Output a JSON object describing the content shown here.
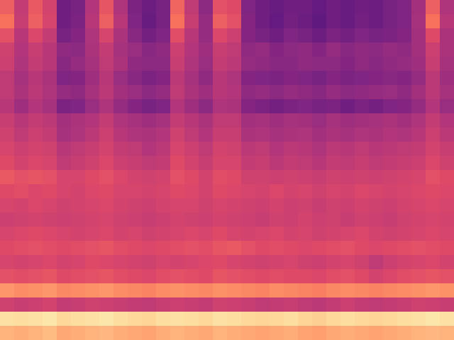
{
  "chart_data": {
    "type": "heatmap",
    "color": "magma",
    "tick_labels": false,
    "zlim": [
      0,
      100
    ],
    "cells": [
      [
        66,
        53,
        64,
        57,
        33,
        35,
        49,
        63,
        48,
        36,
        32,
        35,
        67,
        52,
        40,
        62,
        60,
        37,
        33,
        31,
        33,
        33,
        30,
        33,
        31,
        33,
        32,
        35,
        37,
        45,
        66,
        48
      ],
      [
        70,
        54,
        66,
        58,
        33,
        36,
        50,
        66,
        50,
        37,
        31,
        35,
        70,
        54,
        42,
        66,
        62,
        38,
        33,
        30,
        34,
        32,
        29,
        33,
        31,
        34,
        32,
        35,
        37,
        46,
        70,
        50
      ],
      [
        62,
        50,
        59,
        53,
        35,
        38,
        48,
        58,
        47,
        39,
        34,
        37,
        61,
        50,
        42,
        59,
        55,
        38,
        35,
        33,
        37,
        35,
        32,
        36,
        34,
        37,
        35,
        36,
        38,
        45,
        60,
        47
      ],
      [
        56,
        49,
        54,
        50,
        41,
        40,
        47,
        53,
        46,
        43,
        39,
        41,
        55,
        49,
        44,
        54,
        52,
        41,
        42,
        38,
        40,
        41,
        38,
        42,
        39,
        41,
        40,
        42,
        41,
        45,
        55,
        47
      ],
      [
        55,
        48,
        53,
        50,
        39,
        42,
        46,
        52,
        47,
        41,
        40,
        40,
        54,
        48,
        43,
        53,
        51,
        42,
        41,
        39,
        39,
        41,
        40,
        40,
        38,
        41,
        39,
        41,
        42,
        44,
        54,
        46
      ],
      [
        52,
        46,
        50,
        47,
        37,
        38,
        44,
        50,
        43,
        39,
        36,
        38,
        51,
        46,
        41,
        50,
        48,
        38,
        37,
        36,
        38,
        37,
        35,
        38,
        36,
        37,
        38,
        39,
        38,
        42,
        51,
        44
      ],
      [
        52,
        47,
        51,
        48,
        42,
        41,
        46,
        51,
        45,
        43,
        40,
        42,
        52,
        47,
        44,
        50,
        49,
        41,
        42,
        40,
        42,
        41,
        39,
        42,
        40,
        41,
        42,
        43,
        41,
        45,
        51,
        46
      ],
      [
        50,
        44,
        49,
        46,
        36,
        37,
        43,
        48,
        42,
        38,
        35,
        37,
        49,
        44,
        40,
        48,
        47,
        38,
        36,
        34,
        36,
        37,
        35,
        36,
        33,
        36,
        34,
        37,
        38,
        42,
        49,
        43
      ],
      [
        54,
        50,
        53,
        51,
        45,
        47,
        49,
        53,
        48,
        46,
        44,
        46,
        53,
        50,
        47,
        52,
        52,
        45,
        46,
        44,
        46,
        45,
        43,
        46,
        44,
        45,
        46,
        47,
        45,
        48,
        53,
        49
      ],
      [
        56,
        52,
        55,
        53,
        46,
        48,
        51,
        55,
        50,
        48,
        47,
        49,
        56,
        52,
        49,
        54,
        54,
        47,
        48,
        46,
        47,
        48,
        45,
        47,
        46,
        48,
        47,
        49,
        48,
        50,
        55,
        51
      ],
      [
        58,
        55,
        57,
        56,
        50,
        52,
        54,
        57,
        53,
        52,
        49,
        51,
        58,
        55,
        52,
        57,
        56,
        51,
        52,
        49,
        51,
        50,
        48,
        51,
        50,
        52,
        50,
        51,
        52,
        53,
        57,
        54
      ],
      [
        60,
        57,
        59,
        58,
        52,
        54,
        56,
        59,
        55,
        54,
        52,
        53,
        60,
        57,
        54,
        58,
        58,
        53,
        54,
        51,
        53,
        52,
        50,
        53,
        52,
        54,
        52,
        53,
        54,
        55,
        59,
        56
      ],
      [
        64,
        62,
        63,
        62,
        58,
        58,
        60,
        62,
        59,
        57,
        56,
        57,
        62,
        60,
        57,
        61,
        60,
        56,
        56,
        55,
        56,
        55,
        54,
        56,
        55,
        56,
        55,
        56,
        57,
        58,
        62,
        60
      ],
      [
        60,
        61,
        59,
        60,
        58,
        57,
        59,
        60,
        58,
        58,
        57,
        58,
        60,
        59,
        57,
        60,
        59,
        58,
        57,
        59,
        57,
        58,
        56,
        58,
        57,
        59,
        58,
        57,
        58,
        59,
        60,
        59
      ],
      [
        58,
        57,
        59,
        58,
        56,
        57,
        58,
        59,
        57,
        56,
        55,
        57,
        58,
        58,
        56,
        58,
        57,
        56,
        55,
        57,
        55,
        56,
        54,
        56,
        55,
        57,
        56,
        55,
        57,
        58,
        59,
        58
      ],
      [
        55,
        56,
        57,
        56,
        55,
        56,
        57,
        58,
        56,
        55,
        54,
        55,
        57,
        56,
        55,
        57,
        56,
        55,
        54,
        56,
        55,
        57,
        55,
        56,
        54,
        56,
        55,
        54,
        56,
        57,
        58,
        57
      ],
      [
        58,
        59,
        60,
        59,
        58,
        57,
        58,
        59,
        57,
        58,
        56,
        57,
        58,
        59,
        58,
        60,
        58,
        57,
        58,
        59,
        57,
        58,
        56,
        57,
        58,
        59,
        57,
        56,
        57,
        58,
        59,
        58
      ],
      [
        60,
        61,
        62,
        61,
        60,
        61,
        62,
        63,
        61,
        60,
        59,
        60,
        61,
        62,
        61,
        63,
        64,
        62,
        60,
        61,
        60,
        59,
        60,
        61,
        62,
        60,
        59,
        60,
        61,
        62,
        61,
        60
      ],
      [
        58,
        57,
        58,
        59,
        57,
        58,
        60,
        59,
        58,
        57,
        56,
        58,
        57,
        58,
        59,
        60,
        58,
        57,
        56,
        57,
        58,
        56,
        55,
        57,
        58,
        56,
        52,
        55,
        57,
        58,
        59,
        57
      ],
      [
        62,
        61,
        62,
        63,
        60,
        61,
        62,
        63,
        61,
        60,
        59,
        61,
        62,
        61,
        60,
        63,
        62,
        61,
        60,
        61,
        60,
        60,
        59,
        61,
        62,
        60,
        57,
        59,
        61,
        62,
        63,
        62
      ],
      [
        78,
        76,
        77,
        78,
        75,
        76,
        77,
        78,
        76,
        75,
        74,
        76,
        77,
        76,
        75,
        77,
        76,
        75,
        74,
        76,
        75,
        74,
        73,
        75,
        76,
        75,
        74,
        75,
        76,
        77,
        78,
        77
      ],
      [
        56,
        54,
        55,
        57,
        53,
        54,
        56,
        55,
        54,
        53,
        52,
        54,
        55,
        54,
        53,
        56,
        55,
        54,
        52,
        53,
        54,
        52,
        51,
        53,
        55,
        53,
        52,
        53,
        54,
        56,
        55,
        54
      ],
      [
        94,
        93,
        94,
        95,
        92,
        93,
        94,
        95,
        93,
        92,
        91,
        93,
        94,
        93,
        92,
        94,
        93,
        92,
        91,
        92,
        93,
        91,
        90,
        92,
        93,
        92,
        91,
        92,
        93,
        94,
        95,
        94
      ],
      [
        84,
        83,
        84,
        86,
        82,
        83,
        84,
        85,
        83,
        82,
        81,
        83,
        84,
        83,
        82,
        84,
        83,
        82,
        81,
        82,
        83,
        81,
        80,
        82,
        83,
        82,
        81,
        82,
        83,
        84,
        85,
        84
      ]
    ]
  }
}
